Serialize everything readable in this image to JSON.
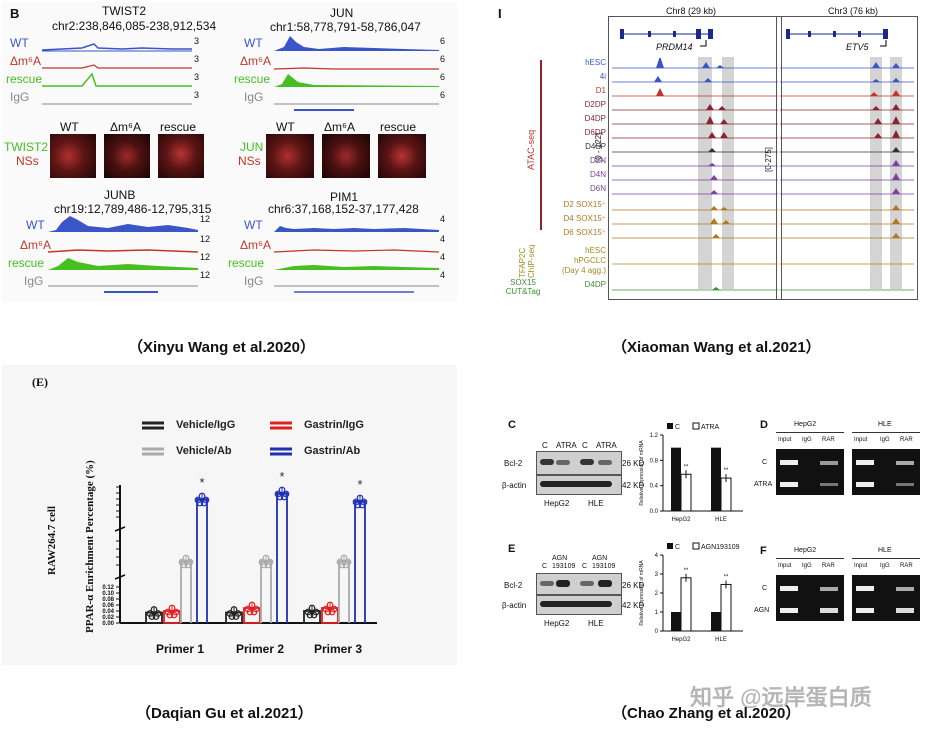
{
  "captions": {
    "top_left": "（Xinyu Wang et al.2020）",
    "top_right": "（Xiaoman Wang et al.2021）",
    "bottom_left": "（Daqian Gu et al.2021）",
    "bottom_right": "（Chao Zhang et al.2020）"
  },
  "watermark": "知乎 @远岸蛋白质",
  "panel_b": {
    "label": "B",
    "conditions": [
      "WT",
      "Δm⁶A",
      "rescue",
      "IgG"
    ],
    "condition_colors": [
      "#3a55c8",
      "#c0352b",
      "#45c020",
      "#888888"
    ],
    "loci": [
      {
        "gene": "TWIST2",
        "coords": "chr2:238,846,085-238,912,534",
        "scales": [
          "3",
          "3",
          "3",
          "3"
        ]
      },
      {
        "gene": "JUN",
        "coords": "chr1:58,778,791-58,786,047",
        "scales": [
          "6",
          "6",
          "6",
          "6"
        ]
      },
      {
        "gene": "JUNB",
        "coords": "chr19:12,789,486-12,795,315",
        "scales": [
          "12",
          "12",
          "12",
          "12"
        ]
      },
      {
        "gene": "PIM1",
        "coords": "chr6:37,168,152-37,177,428",
        "scales": [
          "4",
          "4",
          "4",
          "4"
        ]
      }
    ],
    "micro_headers": [
      "WT",
      "Δm⁶A",
      "rescue"
    ],
    "micro_left_1": [
      "TWIST2",
      "NSs"
    ],
    "micro_left_2": [
      "JUN",
      "NSs"
    ]
  },
  "panel_i": {
    "label": "I",
    "loci": [
      {
        "region": "Chr8 (29 kb)",
        "gene": "PRDM14",
        "range": "[0 - 122]"
      },
      {
        "region": "Chr3 (76 kb)",
        "gene": "ETV5",
        "range": "[0-275]"
      }
    ],
    "tracks": [
      {
        "name": "hESC",
        "color": "#3a55c8"
      },
      {
        "name": "4i",
        "color": "#3a55c8"
      },
      {
        "name": "D1",
        "color": "#c0352b"
      },
      {
        "name": "D2DP",
        "color": "#8a2530"
      },
      {
        "name": "D4DP",
        "color": "#8a2530"
      },
      {
        "name": "D6DP",
        "color": "#8a2530"
      },
      {
        "name": "D4SP",
        "color": "#333333"
      },
      {
        "name": "D2N",
        "color": "#7a3fa0"
      },
      {
        "name": "D4N",
        "color": "#7a3fa0"
      },
      {
        "name": "D6N",
        "color": "#7a3fa0"
      },
      {
        "name": "D2 SOX15⁺",
        "color": "#b07820"
      },
      {
        "name": "D4 SOX15⁺",
        "color": "#b07820"
      },
      {
        "name": "D6 SOX15⁺",
        "color": "#b07820"
      },
      {
        "name": "hESC",
        "color": "#a08a20"
      },
      {
        "name": "hPGCLC",
        "color": "#a08a20"
      },
      {
        "name": "(Day 4 agg.)",
        "color": "#a08a20"
      },
      {
        "name": "D4DP",
        "color": "#3a9030"
      }
    ],
    "groups": [
      {
        "name": "ATAC-seq",
        "color": "#c0352b"
      },
      {
        "name": "TFAP2C ChIP-seq",
        "color": "#a08a20"
      },
      {
        "name": "SOX15 CUT&Tag",
        "color": "#3a9030"
      }
    ]
  },
  "chart_data": {
    "type": "scatter",
    "panel_label": "(E)",
    "ylabel": "PPAR-α Enrichment Percentage (%)",
    "side_label": "RAW264.7 cell",
    "categories": [
      "Primer 1",
      "Primer 2",
      "Primer 3"
    ],
    "y_ticks_lower": [
      "0.00",
      "0.02",
      "0.04",
      "0.06",
      "0.08",
      "0.10",
      "0.12"
    ],
    "ylim_lower": [
      0.0,
      0.12
    ],
    "legend": [
      {
        "name": "Vehicle/IgG",
        "color": "#222222"
      },
      {
        "name": "Gastrin/IgG",
        "color": "#e02020"
      },
      {
        "name": "Vehicle/Ab",
        "color": "#aaaaaa"
      },
      {
        "name": "Gastrin/Ab",
        "color": "#1f2fb0"
      }
    ],
    "series": [
      {
        "name": "Vehicle/IgG",
        "values": [
          0.035,
          0.035,
          0.04
        ]
      },
      {
        "name": "Gastrin/IgG",
        "values": [
          0.04,
          0.05,
          0.05
        ]
      },
      {
        "name": "Vehicle/Ab",
        "values": [
          0.5,
          0.5,
          0.5
        ]
      },
      {
        "name": "Gastrin/Ab",
        "values": [
          1.5,
          1.8,
          1.4
        ]
      }
    ],
    "significance": [
      "*",
      "*",
      "*"
    ]
  },
  "panel_cdef": {
    "labels": [
      "C",
      "D",
      "E",
      "F"
    ],
    "wb_c": {
      "lanes": [
        "C",
        "ATRA",
        "C",
        "ATRA"
      ],
      "rows": [
        "Bcl-2",
        "β-actin"
      ],
      "kd": [
        "26 KD",
        "42 KD"
      ],
      "cells": [
        "HepG2",
        "HLE"
      ]
    },
    "wb_e": {
      "lanes": [
        "C",
        "AGN 193109",
        "C",
        "AGN 193109"
      ],
      "rows": [
        "Bcl-2",
        "β-actin"
      ],
      "kd": [
        "26 KD",
        "42 KD"
      ],
      "cells": [
        "HepG2",
        "HLE"
      ]
    },
    "bar_c": {
      "type": "bar",
      "legend": [
        "C",
        "ATRA"
      ],
      "categories": [
        "HepG2",
        "HLE"
      ],
      "ylabel": "Relative expression of mRNA",
      "y_ticks": [
        "0.0",
        "0.4",
        "0.8",
        "1.2"
      ],
      "ylim": [
        0,
        1.2
      ],
      "series": [
        {
          "name": "C",
          "values": [
            1.0,
            1.0
          ]
        },
        {
          "name": "ATRA",
          "values": [
            0.58,
            0.52
          ]
        }
      ],
      "significance": [
        "**",
        "**"
      ]
    },
    "bar_e": {
      "type": "bar",
      "legend": [
        "C",
        "AGN193109"
      ],
      "categories": [
        "HepG2",
        "HLE"
      ],
      "ylabel": "Relative expression of mRNA",
      "y_ticks": [
        "0",
        "1",
        "2",
        "3",
        "4"
      ],
      "ylim": [
        0,
        4
      ],
      "series": [
        {
          "name": "C",
          "values": [
            1.0,
            1.0
          ]
        },
        {
          "name": "AGN193109",
          "values": [
            2.8,
            2.45
          ]
        }
      ],
      "significance": [
        "**",
        "**"
      ]
    },
    "pcr_d": {
      "cells": [
        "HepG2",
        "HLE"
      ],
      "lanes": [
        "Input",
        "IgG",
        "RAR"
      ],
      "rows": [
        "C",
        "ATRA"
      ]
    },
    "pcr_f": {
      "cells": [
        "HepG2",
        "HLE"
      ],
      "lanes": [
        "Input",
        "IgG",
        "RAR"
      ],
      "rows": [
        "C",
        "AGN"
      ]
    }
  }
}
